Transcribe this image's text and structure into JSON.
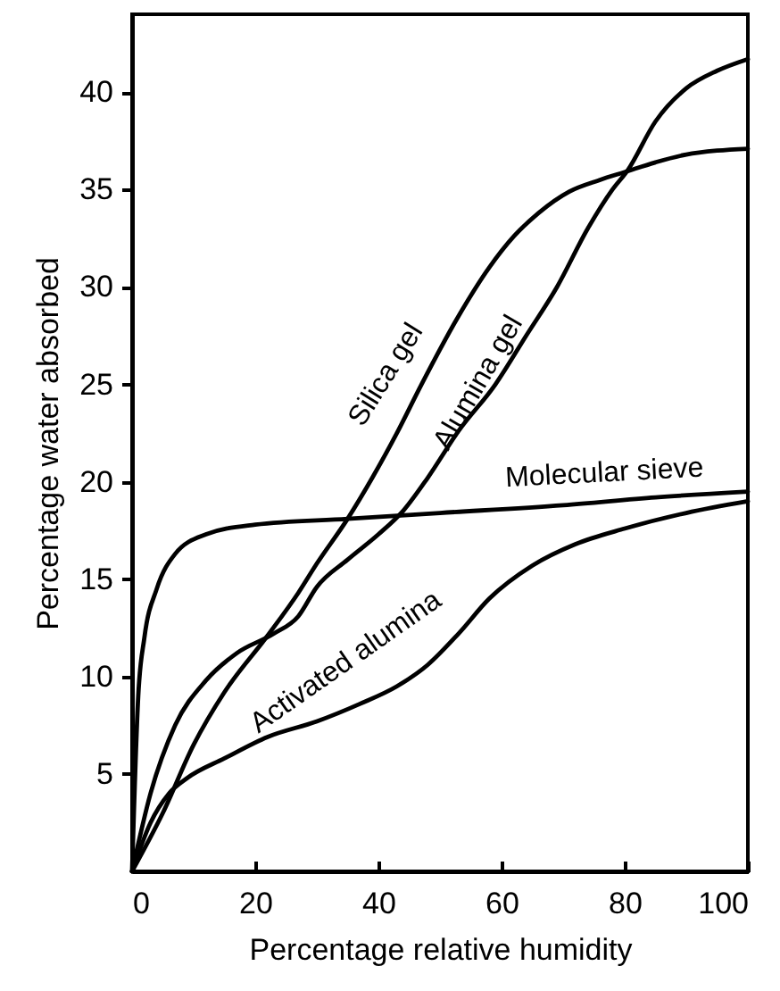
{
  "chart_data": {
    "type": "line",
    "xlabel": "Percentage relative humidity",
    "ylabel": "Percentage water absorbed",
    "xlim": [
      0,
      100
    ],
    "ylim": [
      0,
      44
    ],
    "xticks": [
      0,
      20,
      40,
      60,
      80,
      100
    ],
    "yticks": [
      5,
      10,
      15,
      20,
      25,
      30,
      35,
      40
    ],
    "grid": false,
    "marker": "none",
    "line_style": "solid",
    "series": [
      {
        "name": "Silica gel",
        "color": "#000000",
        "x": [
          0,
          5,
          10,
          15,
          22,
          27,
          30,
          35,
          39,
          43,
          47,
          53,
          58,
          62,
          66,
          71,
          76,
          80,
          85,
          90,
          95,
          100
        ],
        "values": [
          0,
          3,
          6.5,
          9.2,
          12.1,
          14.3,
          15.8,
          18.1,
          20.2,
          22.5,
          25,
          28.5,
          31,
          32.6,
          33.8,
          34.9,
          35.5,
          35.9,
          36.4,
          36.8,
          37,
          37.1
        ]
      },
      {
        "name": "Alumina gel",
        "color": "#000000",
        "x": [
          0,
          3,
          7,
          12,
          17,
          23,
          27,
          30,
          35,
          40,
          44,
          48,
          53,
          59,
          64,
          69,
          74,
          78,
          80.5,
          85,
          90,
          95,
          100
        ],
        "values": [
          0,
          4,
          7.5,
          9.8,
          11.2,
          12.2,
          13.1,
          14.6,
          16,
          17.3,
          18.5,
          20.2,
          22.6,
          25,
          27.5,
          30,
          33,
          35,
          36,
          38.5,
          40.2,
          41.1,
          41.7
        ]
      },
      {
        "name": "Molecular sieve",
        "color": "#000000",
        "x": [
          0,
          1,
          2,
          4,
          7,
          12,
          20,
          35,
          50,
          70,
          85,
          100
        ],
        "values": [
          0,
          9,
          12,
          14.5,
          16.3,
          17.3,
          17.8,
          18.1,
          18.4,
          18.8,
          19.2,
          19.5
        ]
      },
      {
        "name": "Activated alumina",
        "color": "#000000",
        "x": [
          0,
          3,
          6,
          9,
          15,
          22,
          30,
          37,
          43,
          48,
          53,
          58,
          65,
          72,
          80,
          90,
          100
        ],
        "values": [
          0,
          2.5,
          4,
          4.8,
          5.8,
          6.9,
          7.7,
          8.6,
          9.5,
          10.6,
          12.2,
          14,
          15.7,
          16.8,
          17.6,
          18.4,
          19
        ]
      }
    ]
  }
}
